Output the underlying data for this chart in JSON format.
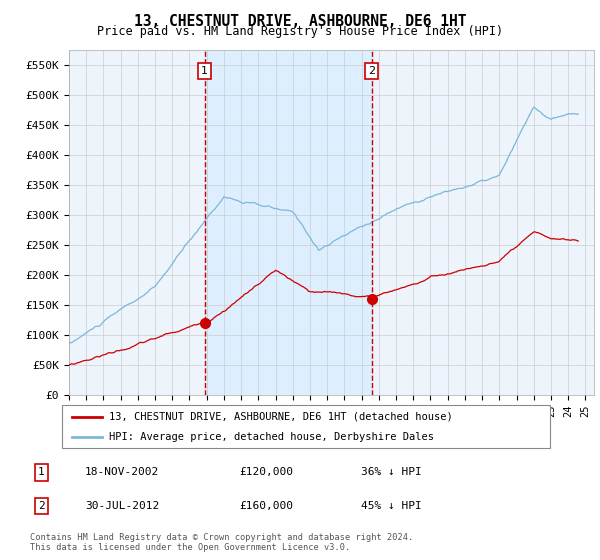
{
  "title": "13, CHESTNUT DRIVE, ASHBOURNE, DE6 1HT",
  "subtitle": "Price paid vs. HM Land Registry's House Price Index (HPI)",
  "ylim": [
    0,
    575000
  ],
  "yticks": [
    0,
    50000,
    100000,
    150000,
    200000,
    250000,
    300000,
    350000,
    400000,
    450000,
    500000,
    550000
  ],
  "ytick_labels": [
    "£0",
    "£50K",
    "£100K",
    "£150K",
    "£200K",
    "£250K",
    "£300K",
    "£350K",
    "£400K",
    "£450K",
    "£500K",
    "£550K"
  ],
  "xlim_start": 1995.0,
  "xlim_end": 2025.5,
  "sale1_x": 2002.88,
  "sale1_y": 120000,
  "sale2_x": 2012.58,
  "sale2_y": 160000,
  "hpi_color": "#7ab8d9",
  "property_color": "#cc0000",
  "dashed_line_color": "#cc0000",
  "shade_color": "#ddeeff",
  "plot_bg_color": "#edf4fb",
  "legend_label_property": "13, CHESTNUT DRIVE, ASHBOURNE, DE6 1HT (detached house)",
  "legend_label_hpi": "HPI: Average price, detached house, Derbyshire Dales",
  "annotation1_label": "18-NOV-2002",
  "annotation1_price": "£120,000",
  "annotation1_pct": "36% ↓ HPI",
  "annotation2_label": "30-JUL-2012",
  "annotation2_price": "£160,000",
  "annotation2_pct": "45% ↓ HPI",
  "footer_line1": "Contains HM Land Registry data © Crown copyright and database right 2024.",
  "footer_line2": "This data is licensed under the Open Government Licence v3.0."
}
